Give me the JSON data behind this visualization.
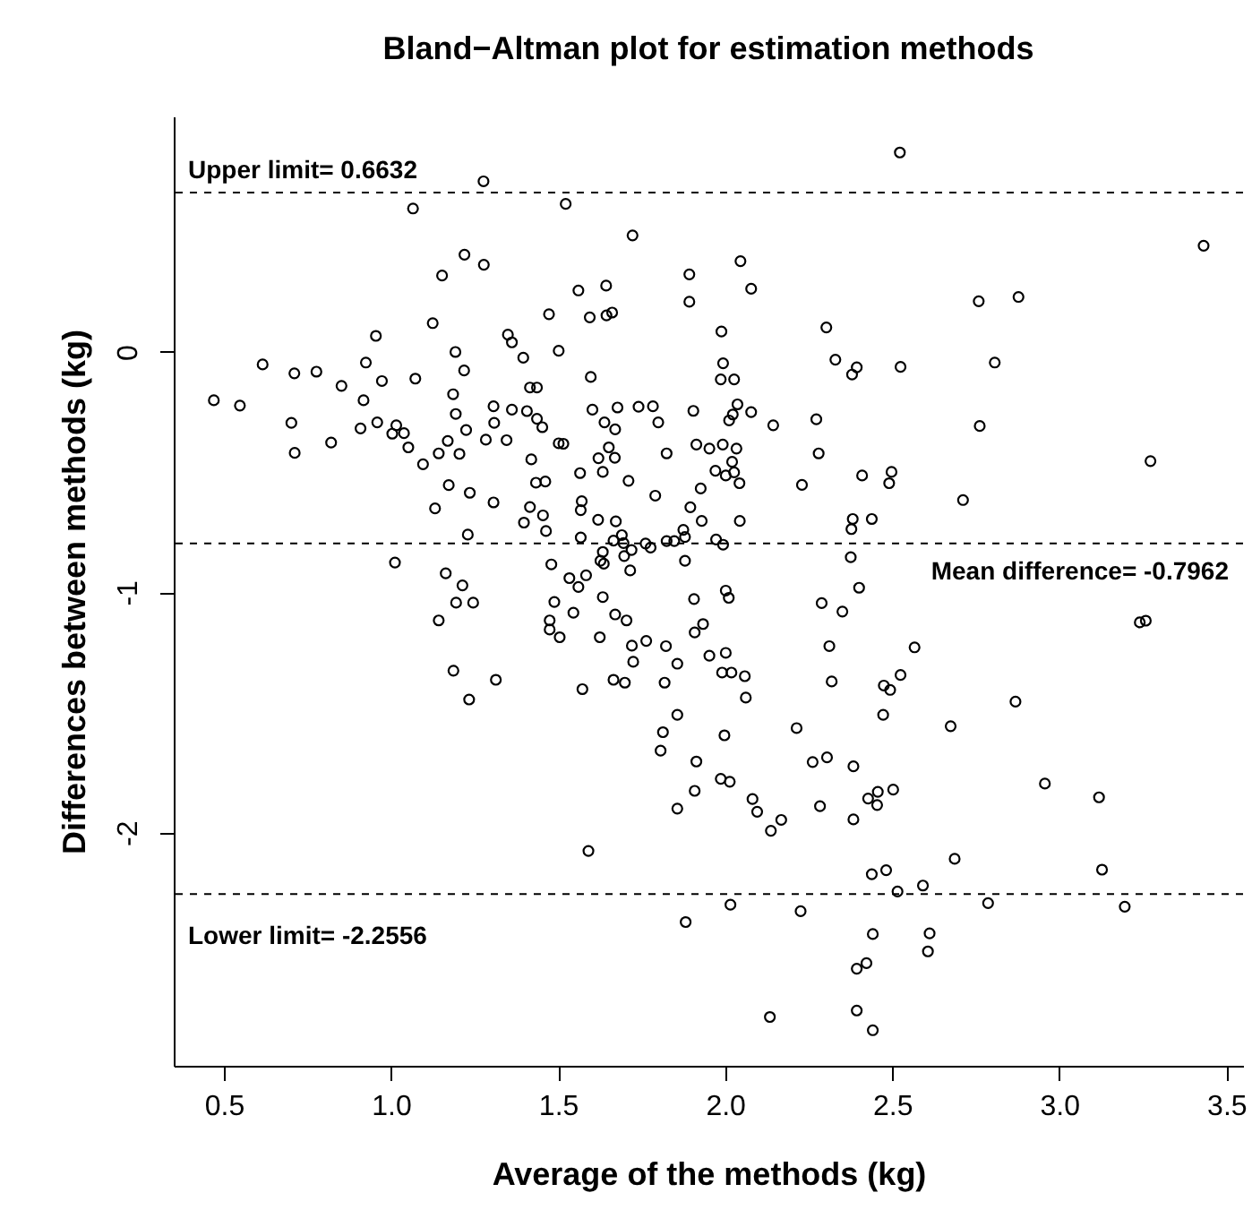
{
  "chart_data": {
    "type": "scatter",
    "title": "Bland−Altman plot for estimation methods",
    "xlabel": "Average of the methods (kg)",
    "ylabel": "Differences between methods (kg)",
    "xlim": [
      0.35,
      3.55
    ],
    "ylim": [
      -2.97,
      0.98
    ],
    "xticks": [
      0.5,
      {
        "value": 1,
        "label": "1.0"
      },
      1.5,
      {
        "value": 2,
        "label": "2.0"
      },
      2.5,
      {
        "value": 3,
        "label": "3.0"
      },
      3.5
    ],
    "yticks": [
      -2,
      -1,
      0
    ],
    "grid": false,
    "marker": "circle",
    "series": [
      {
        "color": "#000000",
        "x": [
          1.277,
          1.066,
          1.523,
          1.723,
          1.22,
          1.278,
          1.153,
          1.561,
          1.644,
          1.473,
          1.595,
          1.645,
          1.662,
          1.125,
          0.955,
          1.35,
          1.362,
          1.193,
          1.396,
          1.502,
          0.616,
          0.711,
          0.777,
          0.925,
          1.219,
          0.852,
          0.973,
          1.073,
          1.598,
          1.416,
          1.437,
          0.47,
          0.548,
          0.918,
          1.186,
          0.702,
          0.712,
          0.821,
          0.909,
          0.959,
          1.016,
          1.004,
          1.039,
          1.052,
          1.096,
          1.143,
          1.17,
          1.205,
          1.194,
          1.225,
          1.284,
          1.309,
          1.307,
          1.362,
          1.346,
          1.407,
          1.437,
          1.453,
          1.502,
          1.516,
          1.603,
          1.639,
          1.671,
          1.678,
          1.741,
          1.784,
          1.8,
          1.825,
          1.652,
          1.621,
          1.67,
          1.634,
          1.566,
          1.711,
          1.791,
          1.42,
          1.434,
          1.462,
          1.173,
          1.236,
          1.307,
          1.132,
          1.571,
          1.568,
          1.416,
          1.455,
          1.398,
          1.464,
          1.62,
          1.673,
          1.23,
          1.568,
          1.666,
          1.691,
          1.696,
          1.634,
          1.72,
          1.698,
          1.762,
          1.777,
          1.825,
          1.848,
          1.627,
          1.637,
          1.716,
          1.012,
          1.48,
          1.164,
          1.214,
          1.534,
          1.584,
          1.561,
          1.634,
          1.195,
          1.246,
          1.489,
          1.546,
          1.671,
          1.705,
          1.143,
          1.475,
          1.475,
          1.505,
          1.625,
          1.721,
          1.764,
          1.823,
          1.857,
          1.725,
          1.666,
          1.7,
          1.819,
          1.573,
          1.187,
          1.314,
          1.234,
          1.857,
          1.814,
          1.807,
          1.857,
          1.591,
          2.523,
          3.432,
          2.046,
          1.893,
          2.078,
          1.893,
          2.759,
          2.878,
          1.989,
          2.303,
          1.994,
          1.987,
          2.027,
          2.33,
          2.394,
          2.38,
          2.525,
          2.807,
          1.905,
          2.037,
          2.023,
          2.012,
          2.078,
          2.144,
          2.273,
          2.762,
          1.914,
          1.953,
          1.993,
          2.034,
          2.021,
          1.971,
          2.002,
          2.027,
          2.043,
          2.28,
          2.23,
          2.41,
          2.498,
          2.491,
          3.273,
          1.927,
          2.712,
          1.896,
          1.93,
          2.044,
          2.382,
          2.378,
          2.439,
          1.875,
          1.88,
          1.973,
          1.994,
          1.88,
          2.376,
          2.401,
          1.907,
          2.002,
          2.011,
          2.289,
          2.351,
          1.934,
          3.241,
          3.259,
          1.909,
          1.953,
          2.002,
          1.991,
          2.019,
          2.059,
          2.062,
          2.312,
          2.319,
          2.567,
          2.525,
          2.475,
          2.494,
          2.473,
          2.869,
          1.998,
          2.214,
          2.675,
          1.914,
          2.262,
          2.305,
          2.384,
          1.987,
          2.014,
          1.909,
          2.082,
          2.096,
          2.168,
          2.137,
          2.284,
          2.384,
          2.428,
          2.457,
          2.455,
          2.503,
          2.957,
          3.119,
          2.439,
          2.482,
          2.516,
          2.592,
          2.687,
          3.128,
          2.016,
          1.882,
          2.226,
          2.787,
          3.196,
          2.442,
          2.612,
          2.607,
          2.394,
          2.423,
          2.134,
          2.394,
          2.442
        ],
        "values": [
          0.71,
          0.597,
          0.616,
          0.485,
          0.405,
          0.363,
          0.318,
          0.256,
          0.276,
          0.157,
          0.144,
          0.152,
          0.164,
          0.12,
          0.067,
          0.072,
          0.04,
          0.0,
          -0.024,
          0.005,
          -0.052,
          -0.089,
          -0.082,
          -0.044,
          -0.077,
          -0.141,
          -0.121,
          -0.111,
          -0.104,
          -0.148,
          -0.148,
          -0.201,
          -0.223,
          -0.201,
          -0.176,
          -0.295,
          -0.42,
          -0.377,
          -0.318,
          -0.293,
          -0.305,
          -0.34,
          -0.338,
          -0.397,
          -0.467,
          -0.422,
          -0.37,
          -0.424,
          -0.258,
          -0.325,
          -0.365,
          -0.295,
          -0.226,
          -0.24,
          -0.367,
          -0.246,
          -0.278,
          -0.313,
          -0.38,
          -0.382,
          -0.24,
          -0.293,
          -0.322,
          -0.231,
          -0.228,
          -0.226,
          -0.293,
          -0.422,
          -0.397,
          -0.442,
          -0.44,
          -0.499,
          -0.504,
          -0.536,
          -0.598,
          -0.447,
          -0.544,
          -0.539,
          -0.554,
          -0.586,
          -0.626,
          -0.651,
          -0.621,
          -0.658,
          -0.645,
          -0.68,
          -0.71,
          -0.745,
          -0.698,
          -0.705,
          -0.76,
          -0.772,
          -0.785,
          -0.762,
          -0.795,
          -0.832,
          -0.824,
          -0.849,
          -0.797,
          -0.814,
          -0.787,
          -0.787,
          -0.869,
          -0.881,
          -0.909,
          -0.876,
          -0.884,
          -0.921,
          -0.971,
          -0.941,
          -0.929,
          -0.978,
          -1.02,
          -1.043,
          -1.043,
          -1.04,
          -1.085,
          -1.092,
          -1.117,
          -1.117,
          -1.117,
          -1.155,
          -1.187,
          -1.187,
          -1.222,
          -1.202,
          -1.224,
          -1.297,
          -1.289,
          -1.364,
          -1.376,
          -1.376,
          -1.403,
          -1.326,
          -1.364,
          -1.446,
          -1.51,
          -1.582,
          -1.659,
          -1.9,
          -2.076,
          0.83,
          0.442,
          0.378,
          0.323,
          0.263,
          0.209,
          0.211,
          0.229,
          0.085,
          0.102,
          -0.047,
          -0.114,
          -0.114,
          -0.032,
          -0.064,
          -0.094,
          -0.062,
          -0.044,
          -0.245,
          -0.218,
          -0.26,
          -0.285,
          -0.25,
          -0.305,
          -0.28,
          -0.308,
          -0.385,
          -0.402,
          -0.385,
          -0.402,
          -0.457,
          -0.494,
          -0.514,
          -0.501,
          -0.546,
          -0.422,
          -0.553,
          -0.514,
          -0.499,
          -0.546,
          -0.454,
          -0.568,
          -0.616,
          -0.646,
          -0.703,
          -0.703,
          -0.695,
          -0.737,
          -0.695,
          -0.74,
          -0.77,
          -0.78,
          -0.802,
          -0.869,
          -0.854,
          -0.981,
          -1.028,
          -0.993,
          -1.023,
          -1.045,
          -1.08,
          -1.132,
          -1.125,
          -1.118,
          -1.167,
          -1.264,
          -1.252,
          -1.334,
          -1.334,
          -1.349,
          -1.438,
          -1.224,
          -1.371,
          -1.229,
          -1.344,
          -1.388,
          -1.406,
          -1.51,
          -1.455,
          -1.595,
          -1.565,
          -1.557,
          -1.704,
          -1.706,
          -1.687,
          -1.724,
          -1.776,
          -1.788,
          -1.826,
          -1.86,
          -1.913,
          -1.947,
          -1.992,
          -1.89,
          -1.945,
          -1.858,
          -1.83,
          -1.885,
          -1.821,
          -1.796,
          -1.853,
          -2.173,
          -2.156,
          -2.245,
          -2.22,
          -2.109,
          -2.154,
          -2.3,
          -2.372,
          -2.327,
          -2.293,
          -2.308,
          -2.422,
          -2.419,
          -2.494,
          -2.566,
          -2.543,
          -2.767,
          -2.74,
          -2.822
        ]
      }
    ],
    "ref_lines": [
      {
        "axis": "y",
        "value": 0.6632,
        "label": "Upper limit= 0.6632",
        "line_style": "dashed"
      },
      {
        "axis": "y",
        "value": -0.7962,
        "label": "Mean difference= -0.7962",
        "line_style": "dashed"
      },
      {
        "axis": "y",
        "value": -2.2556,
        "label": "Lower limit= -2.2556",
        "line_style": "dashed"
      }
    ]
  }
}
